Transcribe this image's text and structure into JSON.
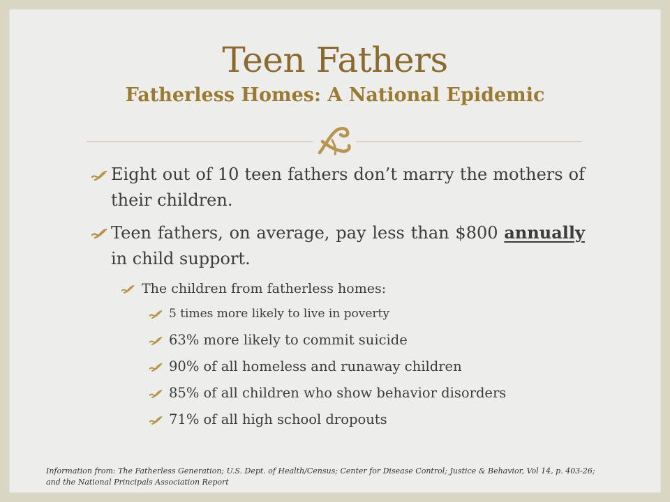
{
  "slide": {
    "title": "Teen Fathers",
    "subtitle": "Fatherless Homes: A National Epidemic",
    "divider_icon": "scroll-flourish-icon",
    "bullet_icon": "check-flourish-icon",
    "colors": {
      "background": "#d9d7c3",
      "panel": "#ededeb",
      "title": "#8a6a2e",
      "accent": "#b8954f",
      "text": "#3c3c3c"
    }
  },
  "bullets": {
    "b1": "Eight out of 10 teen fathers don’t marry the mothers of their children.",
    "b2_pre": "Teen fathers, on average, pay less than $800 ",
    "b2_emph": "annually",
    "b2_post": " in child support.",
    "sub": "The children from fatherless homes:",
    "items": [
      "5 times more likely to live in poverty",
      "63% more likely to commit suicide",
      "90% of all homeless and runaway children",
      "85% of all children who show behavior disorders",
      "71% of all high school dropouts"
    ]
  },
  "source": {
    "line1": "Information from: The Fatherless Generation; U.S. Dept. of Health/Census; Center for Disease Control; Justice & Behavior, Vol 14, p. 403-26;",
    "line2": "and the National Principals Association Report"
  }
}
